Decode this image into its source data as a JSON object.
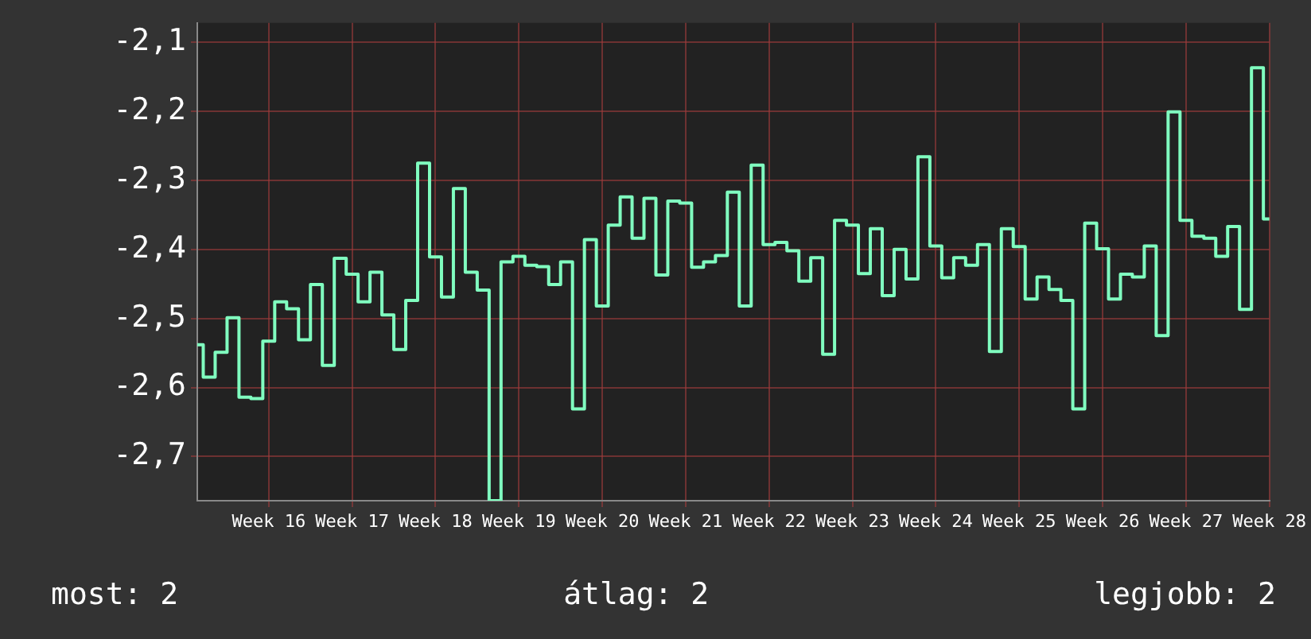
{
  "chart_data": {
    "type": "step",
    "categories": [
      null,
      null,
      null,
      null,
      null,
      null,
      "Week 16",
      null,
      null,
      null,
      null,
      null,
      null,
      "Week 17",
      null,
      null,
      null,
      null,
      null,
      null,
      "Week 18",
      null,
      null,
      null,
      null,
      null,
      null,
      "Week 19",
      null,
      null,
      null,
      null,
      null,
      null,
      "Week 20",
      null,
      null,
      null,
      null,
      null,
      null,
      "Week 21",
      null,
      null,
      null,
      null,
      null,
      null,
      "Week 22",
      null,
      null,
      null,
      null,
      null,
      null,
      "Week 23",
      null,
      null,
      null,
      null,
      null,
      null,
      "Week 24",
      null,
      null,
      null,
      null,
      null,
      null,
      "Week 25",
      null,
      null,
      null,
      null,
      null,
      null,
      "Week 26",
      null,
      null,
      null,
      null,
      null,
      null,
      "Week 27",
      null,
      null,
      null,
      null,
      null,
      null,
      "Week 28"
    ],
    "series": [
      {
        "color": "#80ffc0",
        "values": [
          -2.538,
          -2.585,
          -2.549,
          -2.499,
          -2.614,
          -2.616,
          -2.533,
          -2.476,
          -2.486,
          -2.531,
          -2.451,
          -2.568,
          -2.413,
          -2.436,
          -2.476,
          -2.433,
          -2.495,
          -2.545,
          -2.474,
          -2.275,
          -2.411,
          -2.469,
          -2.312,
          -2.433,
          -2.459,
          -2.764,
          -2.418,
          -2.41,
          -2.423,
          -2.425,
          -2.451,
          -2.418,
          -2.631,
          -2.386,
          -2.482,
          -2.365,
          -2.324,
          -2.384,
          -2.326,
          -2.437,
          -2.33,
          -2.333,
          -2.426,
          -2.418,
          -2.409,
          -2.317,
          -2.482,
          -2.278,
          -2.393,
          -2.39,
          -2.402,
          -2.446,
          -2.412,
          -2.552,
          -2.358,
          -2.365,
          -2.435,
          -2.37,
          -2.467,
          -2.4,
          -2.443,
          -2.266,
          -2.395,
          -2.441,
          -2.412,
          -2.423,
          -2.393,
          -2.548,
          -2.37,
          -2.396,
          -2.472,
          -2.44,
          -2.458,
          -2.474,
          -2.631,
          -2.362,
          -2.399,
          -2.472,
          -2.436,
          -2.44,
          -2.395,
          -2.525,
          -2.201,
          -2.358,
          -2.381,
          -2.384,
          -2.41,
          -2.367,
          -2.487,
          -2.137,
          -2.356
        ]
      }
    ],
    "ylim": [
      -2.764,
      -2.072
    ],
    "yticks": [
      {
        "value": -2.7,
        "label": "-2,7"
      },
      {
        "value": -2.6,
        "label": "-2,6"
      },
      {
        "value": -2.5,
        "label": "-2,5"
      },
      {
        "value": -2.4,
        "label": "-2,4"
      },
      {
        "value": -2.3,
        "label": "-2,3"
      },
      {
        "value": -2.2,
        "label": "-2,2"
      },
      {
        "value": -2.1,
        "label": "-2,1"
      }
    ],
    "grid": true,
    "legend": false,
    "annotations": [
      "most: 2",
      "átlag: 2",
      "legjobb: 2"
    ]
  }
}
